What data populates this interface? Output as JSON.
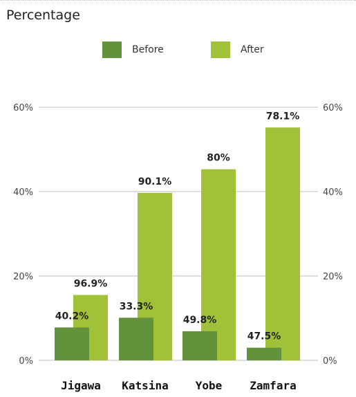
{
  "header": {
    "title": "Percentage"
  },
  "colors": {
    "before": "#62923c",
    "after": "#a1c139",
    "grid": "#bdbdbd"
  },
  "chart_data": {
    "type": "bar",
    "title": "Percentage",
    "categories": [
      "Jigawa",
      "Katsina",
      "Yobe",
      "Zamfara"
    ],
    "series": [
      {
        "name": "Before",
        "values": [
          7.8,
          10.1,
          6.9,
          3.0
        ],
        "labels": [
          "40.2%",
          "33.3%",
          "49.8%",
          "47.5%"
        ]
      },
      {
        "name": "After",
        "values": [
          15.5,
          39.7,
          45.3,
          55.2
        ],
        "labels": [
          "96.9%",
          "90.1%",
          "80%",
          "78.1%"
        ]
      }
    ],
    "ylim": [
      0,
      60
    ],
    "yticks": [
      "0%",
      "20%",
      "40%",
      "60%"
    ],
    "ytick_values": [
      0,
      20,
      40,
      60
    ],
    "legend_position": "top",
    "grid": true
  }
}
